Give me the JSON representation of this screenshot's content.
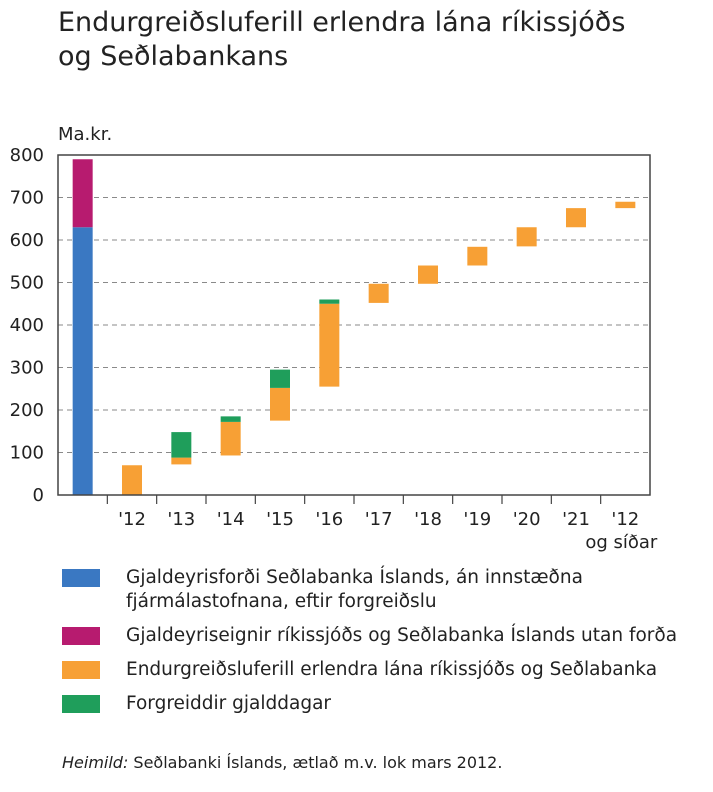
{
  "title_lines": [
    "Endurgreiðsluferill erlendra lána ríkissjóðs",
    "og Seðlabankans"
  ],
  "colors": {
    "blue": "#3a78c2",
    "magenta": "#b71b6f",
    "orange": "#f7a035",
    "green": "#1f9e5b"
  },
  "chart_data": {
    "type": "bar",
    "ylabel": "Ma.kr.",
    "ylim": [
      0,
      800
    ],
    "yticks": [
      0,
      100,
      200,
      300,
      400,
      500,
      600,
      700,
      800
    ],
    "grid": "dashed horizontal",
    "categories": [
      "",
      "'12",
      "'13",
      "'14",
      "'15",
      "'16",
      "'17",
      "'18",
      "'19",
      "'20",
      "'21",
      "'12"
    ],
    "last_category_sublabel": "og síðar",
    "bars": [
      {
        "category": 0,
        "series": "blue",
        "from": 0,
        "to": 630
      },
      {
        "category": 0,
        "series": "magenta",
        "from": 630,
        "to": 790
      },
      {
        "category": 1,
        "series": "orange",
        "from": 0,
        "to": 70
      },
      {
        "category": 2,
        "series": "orange",
        "from": 72,
        "to": 88
      },
      {
        "category": 2,
        "series": "green",
        "from": 88,
        "to": 148
      },
      {
        "category": 3,
        "series": "orange",
        "from": 93,
        "to": 172
      },
      {
        "category": 3,
        "series": "green",
        "from": 172,
        "to": 185
      },
      {
        "category": 4,
        "series": "orange",
        "from": 175,
        "to": 252
      },
      {
        "category": 4,
        "series": "green",
        "from": 252,
        "to": 295
      },
      {
        "category": 5,
        "series": "orange",
        "from": 255,
        "to": 450
      },
      {
        "category": 5,
        "series": "green",
        "from": 450,
        "to": 460
      },
      {
        "category": 6,
        "series": "orange",
        "from": 452,
        "to": 497
      },
      {
        "category": 7,
        "series": "orange",
        "from": 497,
        "to": 540
      },
      {
        "category": 8,
        "series": "orange",
        "from": 540,
        "to": 584
      },
      {
        "category": 9,
        "series": "orange",
        "from": 585,
        "to": 630
      },
      {
        "category": 10,
        "series": "orange",
        "from": 630,
        "to": 675
      },
      {
        "category": 11,
        "series": "orange",
        "from": 675,
        "to": 690
      }
    ]
  },
  "legend": [
    {
      "color_key": "blue",
      "label": "Gjaldeyrisforði Seðlabanka Íslands, án innstæðna fjármálastofnana, eftir forgreiðslu"
    },
    {
      "color_key": "magenta",
      "label": "Gjaldeyriseignir ríkissjóðs og Seðlabanka Íslands utan forða"
    },
    {
      "color_key": "orange",
      "label": "Endurgreiðsluferill erlendra lána ríkissjóðs og Seðlabanka"
    },
    {
      "color_key": "green",
      "label": "Forgreiddir gjalddagar"
    }
  ],
  "source": {
    "label": "Heimild:",
    "text": " Seðlabanki Íslands, ætlað m.v. lok mars 2012."
  }
}
